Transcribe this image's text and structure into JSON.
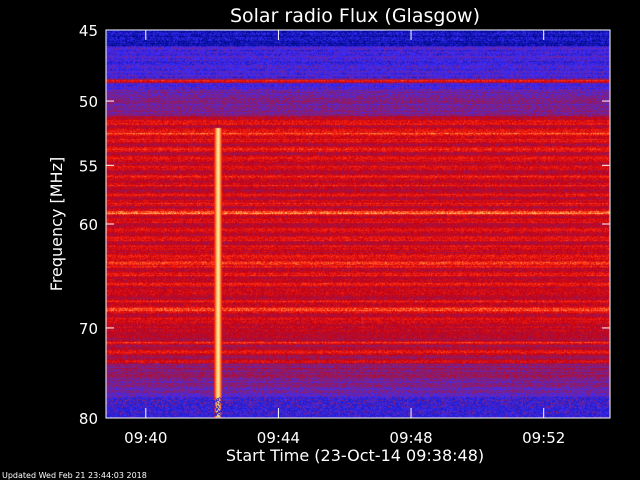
{
  "chart_data": {
    "type": "heatmap",
    "title": "Solar radio Flux (Glasgow)",
    "xlabel": "Start Time (23-Oct-14 09:38:48)",
    "ylabel": "Frequency [MHz]",
    "x_start": "09:38:48",
    "x_end": "09:54:00",
    "x_ticks": [
      "09:40",
      "09:44",
      "09:48",
      "09:52"
    ],
    "y_ticks": [
      45,
      50,
      55,
      60,
      70,
      80
    ],
    "y_scale": "log",
    "ylim": [
      45,
      80
    ],
    "colormap": [
      "#000a8c",
      "#3a2cff",
      "#8a1f6e",
      "#c40012",
      "#ff2a10",
      "#ffd36a",
      "#ffffff"
    ],
    "features": {
      "burst_start": "09:42:05",
      "burst_end": "09:42:15",
      "burst_freq_range": [
        53,
        80
      ],
      "horizontal_lines_mhz": [
        48.5,
        52.5,
        59,
        63.5,
        68,
        71.5,
        72.5,
        73.5
      ]
    }
  },
  "footer": {
    "updated": "Updated Wed Feb 21 23:44:03 2018"
  }
}
